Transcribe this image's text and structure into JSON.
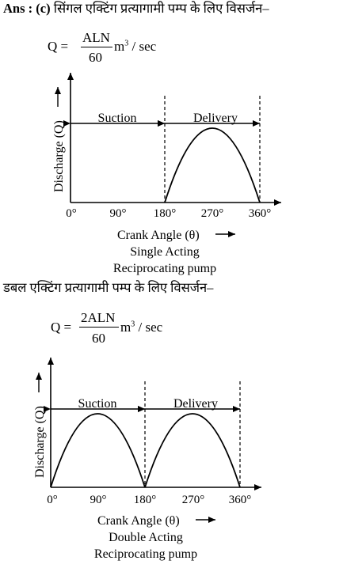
{
  "answer": {
    "prefix": "Ans : (c)",
    "text_single": "सिंगल एक्टिंग प्रत्यागामी पम्प के लिए विसर्जन–",
    "text_double": "डबल एक्टिंग प्रत्यागामी पम्प के लिए विसर्जन–"
  },
  "formula_single": {
    "lhs": "Q =",
    "numerator": "ALN",
    "denominator": "60",
    "unit_base": "m",
    "unit_exp": "3",
    "unit_rest": " / sec"
  },
  "formula_double": {
    "lhs": "Q =",
    "numerator": "2ALN",
    "denominator": "60",
    "unit_base": "m",
    "unit_exp": "3",
    "unit_rest": " / sec"
  },
  "diagram_single": {
    "ylabel": "Discharge (Q)",
    "xlabel": "Crank Angle (θ)",
    "ticks": [
      "0°",
      "90°",
      "180°",
      "270°",
      "360°"
    ],
    "suction_label": "Suction",
    "delivery_label": "Delivery",
    "caption_line1": "Single Acting",
    "caption_line2": "Reciprocating pump"
  },
  "diagram_double": {
    "ylabel": "Discharge (Q)",
    "xlabel": "Crank Angle (θ)",
    "ticks": [
      "0°",
      "90°",
      "180°",
      "270°",
      "360°"
    ],
    "suction_label": "Suction",
    "delivery_label": "Delivery",
    "caption_line1": "Double Acting",
    "caption_line2": "Reciprocating pump"
  }
}
